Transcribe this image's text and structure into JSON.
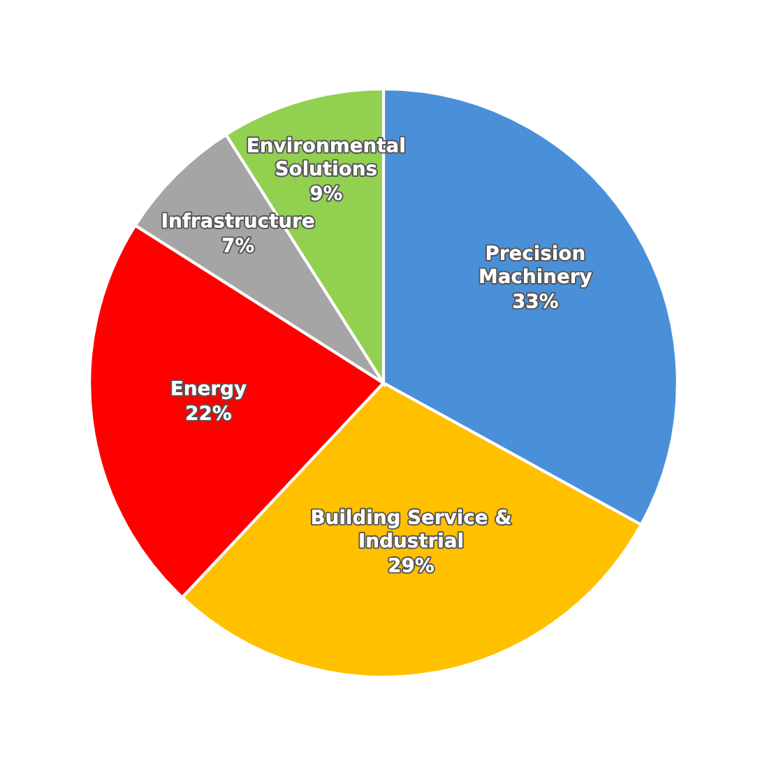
{
  "chart_data": {
    "type": "pie",
    "categories": [
      "Precision\nMachinery",
      "Building Service &\nIndustrial",
      "Energy",
      "Infrastructure",
      "Environmental\nSolutions"
    ],
    "values": [
      33,
      29,
      22,
      7,
      9
    ],
    "value_labels": [
      "33%",
      "29%",
      "22%",
      "7%",
      "9%"
    ],
    "colors": [
      "#4a90d9",
      "#ffc000",
      "#ff0000",
      "#a5a5a5",
      "#92d050"
    ]
  }
}
